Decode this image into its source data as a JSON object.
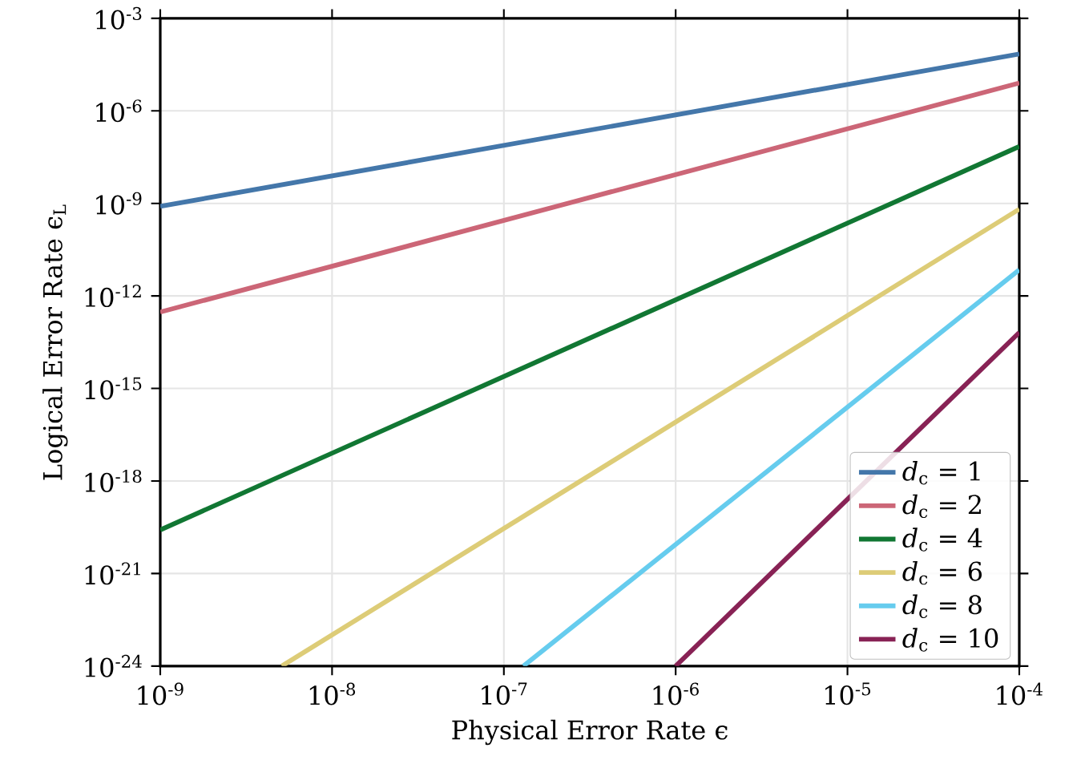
{
  "chart_data": {
    "type": "line",
    "xlabel": "Physical Error Rate ϵ",
    "ylabel": "Logical Error Rate ϵ$_{L}$",
    "log": "xy",
    "grid": true,
    "legend": "bottom right",
    "marker": "none",
    "line_style": "solid",
    "xlim": [
      1e-09,
      0.0001
    ],
    "ylim": [
      1e-24,
      0.001
    ],
    "xticks": [
      {
        "value": 1e-09,
        "label": "10$^{-9}$"
      },
      {
        "value": 1e-08,
        "label": "10$^{-8}$"
      },
      {
        "value": 1e-07,
        "label": "10$^{-7}$"
      },
      {
        "value": 1e-06,
        "label": "10$^{-6}$"
      },
      {
        "value": 1e-05,
        "label": "10$^{-5}$"
      },
      {
        "value": 0.0001,
        "label": "10$^{-4}$"
      }
    ],
    "yticks": [
      {
        "value": 1e-24,
        "label": "10$^{-24}$"
      },
      {
        "value": 1e-21,
        "label": "10$^{-21}$"
      },
      {
        "value": 1e-18,
        "label": "10$^{-18}$"
      },
      {
        "value": 1e-15,
        "label": "10$^{-15}$"
      },
      {
        "value": 1e-12,
        "label": "10$^{-12}$"
      },
      {
        "value": 1e-09,
        "label": "10$^{-9}$"
      },
      {
        "value": 1e-06,
        "label": "10$^{-6}$"
      },
      {
        "value": 0.001,
        "label": "10$^{-3}$"
      }
    ],
    "series": [
      {
        "name": "*d*$_{c}$ = 1",
        "color": "#4477aa",
        "x": [
          1e-09,
          0.0001
        ],
        "values": [
          8e-10,
          7e-05
        ]
      },
      {
        "name": "*d*$_{c}$ = 2",
        "color": "#cc6677",
        "x": [
          1e-09,
          0.0001
        ],
        "values": [
          3e-13,
          8e-06
        ]
      },
      {
        "name": "*d*$_{c}$ = 4",
        "color": "#117733",
        "x": [
          1e-09,
          0.0001
        ],
        "values": [
          2.6e-20,
          7e-08
        ]
      },
      {
        "name": "*d*$_{c}$ = 6",
        "color": "#ddcc77",
        "x": [
          5.1e-09,
          0.0001
        ],
        "values": [
          1e-24,
          6.5e-10
        ]
      },
      {
        "name": "*d*$_{c}$ = 8",
        "color": "#66ccee",
        "x": [
          1.3e-07,
          0.0001
        ],
        "values": [
          1e-24,
          7e-12
        ]
      },
      {
        "name": "*d*$_{c}$ = 10",
        "color": "#882255",
        "x": [
          1e-06,
          0.0001
        ],
        "values": [
          1e-24,
          6.5e-14
        ]
      }
    ]
  }
}
